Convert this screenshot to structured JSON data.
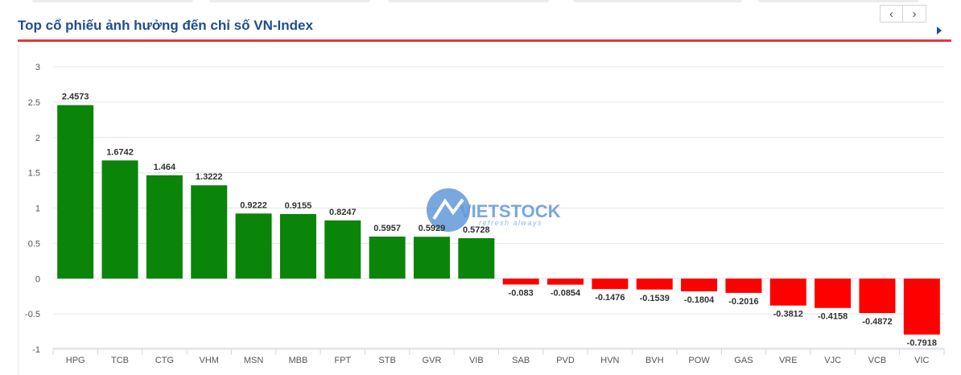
{
  "header": {
    "title": "Top cổ phiếu ảnh hưởng đến chỉ số VN-Index",
    "prev_glyph": "‹",
    "next_glyph": "›"
  },
  "watermark": {
    "brand": "VIETSTOCK",
    "slogan": "refresh always"
  },
  "colors": {
    "positive": "#0a850a",
    "negative": "#ff0000",
    "title": "#1f4e8c",
    "rule": "#e5393a"
  },
  "chart_data": {
    "type": "bar",
    "title": "Top cổ phiếu ảnh hưởng đến chỉ số VN-Index",
    "xlabel": "",
    "ylabel": "",
    "categories": [
      "HPG",
      "TCB",
      "CTG",
      "VHM",
      "MSN",
      "MBB",
      "FPT",
      "STB",
      "GVR",
      "VIB",
      "SAB",
      "PVD",
      "HVN",
      "BVH",
      "POW",
      "GAS",
      "VRE",
      "VJC",
      "VCB",
      "VIC"
    ],
    "values": [
      2.4573,
      1.6742,
      1.464,
      1.3222,
      0.9222,
      0.9155,
      0.8247,
      0.5957,
      0.5929,
      0.5728,
      -0.083,
      -0.0854,
      -0.1476,
      -0.1539,
      -0.1804,
      -0.2016,
      -0.3812,
      -0.4158,
      -0.4872,
      -0.7918
    ],
    "value_labels": [
      "2.4573",
      "1.6742",
      "1.464",
      "1.3222",
      "0.9222",
      "0.9155",
      "0.8247",
      "0.5957",
      "0.5929",
      "0.5728",
      "-0.083",
      "-0.0854",
      "-0.1476",
      "-0.1539",
      "-0.1804",
      "-0.2016",
      "-0.3812",
      "-0.4158",
      "-0.4872",
      "-0.7918"
    ],
    "ylim": [
      -1,
      3
    ],
    "yticks": [
      3,
      2.5,
      2,
      1.5,
      1,
      0.5,
      0,
      -0.5,
      -1
    ],
    "ytick_labels": [
      "3",
      "2.5",
      "2",
      "1.5",
      "1",
      "0.5",
      "0",
      "-0.5",
      "-1"
    ],
    "grid": true,
    "legend": "none"
  }
}
